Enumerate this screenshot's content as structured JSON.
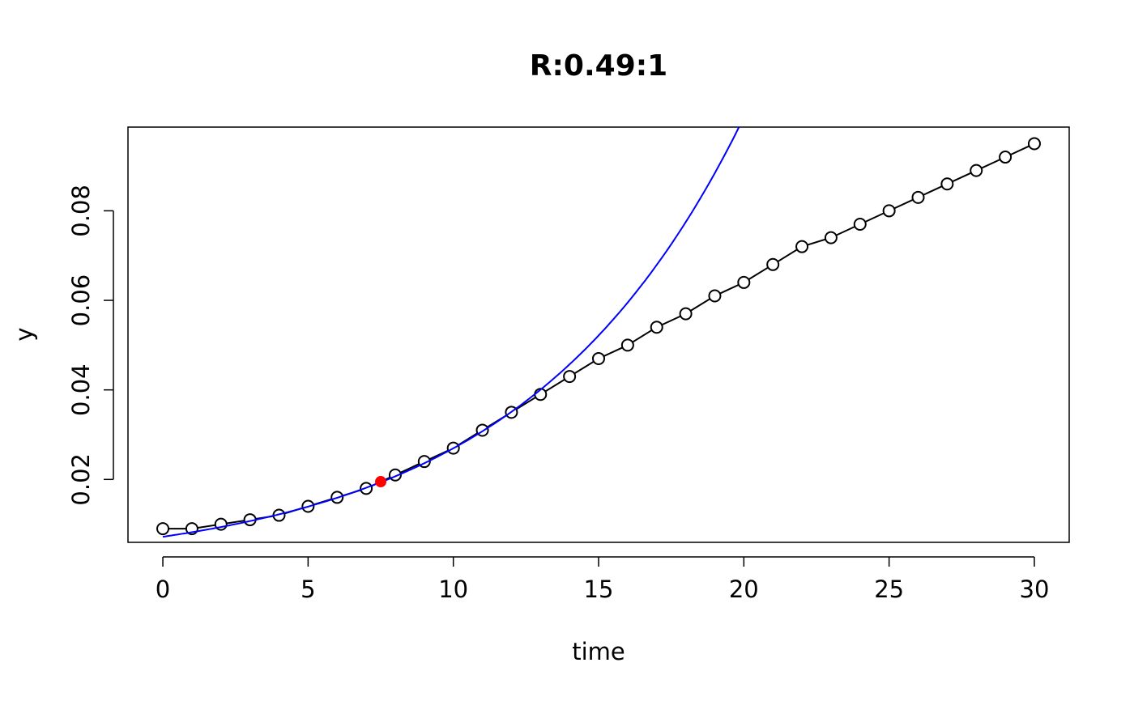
{
  "chart_data": {
    "type": "scatter",
    "title": "R:0.49:1",
    "xlabel": "time",
    "ylabel": "y",
    "xlim": [
      -1.2,
      31.2
    ],
    "ylim": [
      0.00595,
      0.0987
    ],
    "xticks": [
      0,
      5,
      10,
      15,
      20,
      25,
      30
    ],
    "xtick_labels": [
      "0",
      "5",
      "10",
      "15",
      "20",
      "25",
      "30"
    ],
    "yticks": [
      0.02,
      0.04,
      0.06,
      0.08
    ],
    "ytick_labels": [
      "0.02",
      "0.04",
      "0.06",
      "0.08"
    ],
    "grid": false,
    "legend": "none",
    "series": [
      {
        "kind": "points+line",
        "color": "#000000",
        "x": [
          0,
          1,
          2,
          3,
          4,
          5,
          6,
          7,
          8,
          9,
          10,
          11,
          12,
          13,
          14,
          15,
          16,
          17,
          18,
          19,
          20,
          21,
          22,
          23,
          24,
          25,
          26,
          27,
          28,
          29,
          30
        ],
        "y": [
          0.009,
          0.009,
          0.01,
          0.011,
          0.012,
          0.014,
          0.016,
          0.018,
          0.021,
          0.024,
          0.027,
          0.031,
          0.035,
          0.039,
          0.043,
          0.047,
          0.05,
          0.054,
          0.057,
          0.061,
          0.064,
          0.068,
          0.072,
          0.074,
          0.077,
          0.08,
          0.083,
          0.086,
          0.089,
          0.092,
          0.095
        ]
      },
      {
        "kind": "fitted-curve",
        "color": "#0000ff",
        "model": "exponential",
        "y0": 0.0072,
        "rate": 0.132,
        "x_start": 0,
        "x_end": 30
      },
      {
        "kind": "highlight-point",
        "color": "#ff0000",
        "x": 7.5,
        "y": 0.0195
      }
    ]
  }
}
